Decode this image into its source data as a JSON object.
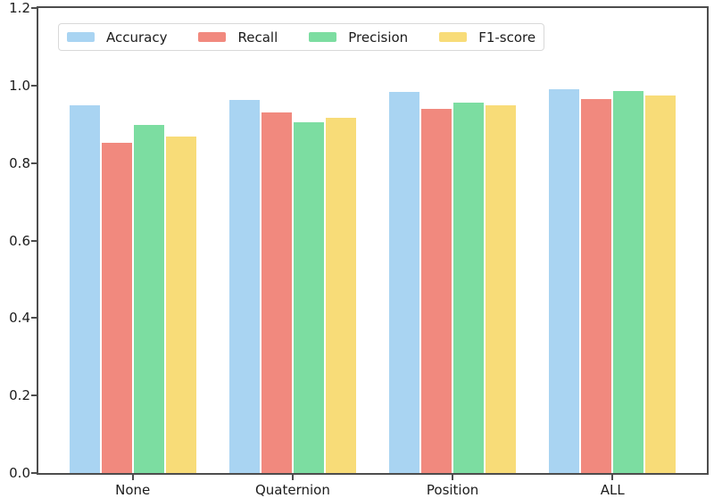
{
  "chart_data": {
    "type": "bar",
    "categories": [
      "None",
      "Quaternion",
      "Position",
      "ALL"
    ],
    "series": [
      {
        "name": "Accuracy",
        "color": "#a9d4f2",
        "values": [
          0.95,
          0.962,
          0.983,
          0.99
        ]
      },
      {
        "name": "Recall",
        "color": "#f1897e",
        "values": [
          0.852,
          0.931,
          0.94,
          0.965
        ]
      },
      {
        "name": "Precision",
        "color": "#7cdda1",
        "values": [
          0.899,
          0.905,
          0.955,
          0.986
        ]
      },
      {
        "name": "F1-score",
        "color": "#f8dc78",
        "values": [
          0.869,
          0.916,
          0.95,
          0.975
        ]
      }
    ],
    "ylim": [
      0.0,
      1.2
    ],
    "yticks": [
      "0.0",
      "0.2",
      "0.4",
      "0.6",
      "0.8",
      "1.0",
      "1.2"
    ],
    "grid": false,
    "legend": {
      "position": "upper-left-inside",
      "orientation": "horizontal"
    },
    "axes": {
      "spine_color": "#4d4d4d",
      "tick_label_color": "#1c1c1c",
      "background": "#ffffff"
    }
  }
}
